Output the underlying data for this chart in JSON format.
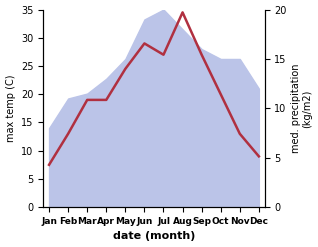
{
  "months": [
    "Jan",
    "Feb",
    "Mar",
    "Apr",
    "May",
    "Jun",
    "Jul",
    "Aug",
    "Sep",
    "Oct",
    "Nov",
    "Dec"
  ],
  "temperature": [
    7.5,
    13.0,
    19.0,
    19.0,
    24.5,
    29.0,
    27.0,
    34.5,
    27.0,
    20.0,
    13.0,
    9.0
  ],
  "precipitation": [
    8.0,
    11.0,
    11.5,
    13.0,
    15.0,
    19.0,
    20.0,
    18.0,
    16.0,
    15.0,
    15.0,
    12.0
  ],
  "temp_color": "#b03040",
  "precip_fill_color": "#bbc4e8",
  "temp_ylim": [
    0,
    35
  ],
  "precip_ylim": [
    0,
    20
  ],
  "temp_yticks": [
    0,
    5,
    10,
    15,
    20,
    25,
    30,
    35
  ],
  "precip_yticks": [
    0,
    5,
    10,
    15,
    20
  ],
  "xlabel": "date (month)",
  "ylabel_left": "max temp (C)",
  "ylabel_right": "med. precipitation\n(kg/m2)",
  "bg_color": "#ffffff",
  "line_width": 1.8
}
